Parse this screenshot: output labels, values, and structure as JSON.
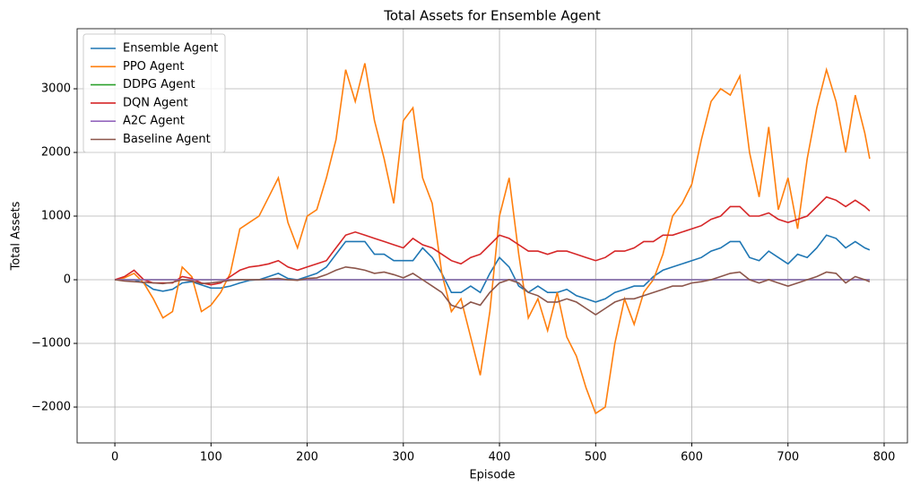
{
  "chart_data": {
    "type": "line",
    "title": "Total Assets for Ensemble Agent",
    "x_label": "Episode",
    "y_label": "Total Assets",
    "x": [
      0,
      10,
      20,
      30,
      40,
      50,
      60,
      70,
      80,
      90,
      100,
      110,
      120,
      130,
      140,
      150,
      160,
      170,
      180,
      190,
      200,
      210,
      220,
      230,
      240,
      250,
      260,
      270,
      280,
      290,
      300,
      310,
      320,
      330,
      340,
      350,
      360,
      370,
      380,
      390,
      400,
      410,
      420,
      430,
      440,
      450,
      460,
      470,
      480,
      490,
      500,
      510,
      520,
      530,
      540,
      550,
      560,
      570,
      580,
      590,
      600,
      610,
      620,
      630,
      640,
      650,
      660,
      670,
      680,
      690,
      700,
      710,
      720,
      730,
      740,
      750,
      760,
      770,
      780,
      785
    ],
    "series": [
      {
        "name": "Ensemble Agent",
        "color": "#1f77b4",
        "values": [
          0,
          0,
          0,
          -50,
          -150,
          -180,
          -150,
          -50,
          -30,
          -80,
          -130,
          -130,
          -100,
          -50,
          -10,
          0,
          50,
          100,
          20,
          0,
          50,
          100,
          200,
          400,
          600,
          600,
          600,
          400,
          400,
          300,
          300,
          300,
          500,
          350,
          100,
          -200,
          -200,
          -100,
          -200,
          100,
          350,
          200,
          -100,
          -200,
          -100,
          -200,
          -200,
          -150,
          -250,
          -300,
          -350,
          -300,
          -200,
          -150,
          -100,
          -100,
          50,
          150,
          200,
          250,
          300,
          350,
          450,
          500,
          600,
          600,
          350,
          300,
          450,
          350,
          250,
          400,
          350,
          500,
          700,
          650,
          500,
          600,
          500,
          470
        ]
      },
      {
        "name": "PPO Agent",
        "color": "#ff7f0e",
        "values": [
          0,
          30,
          100,
          -50,
          -300,
          -600,
          -500,
          200,
          50,
          -500,
          -400,
          -200,
          100,
          800,
          900,
          1000,
          1300,
          1600,
          900,
          500,
          1000,
          1100,
          1600,
          2200,
          3300,
          2800,
          3400,
          2500,
          1900,
          1200,
          2500,
          2700,
          1600,
          1200,
          100,
          -500,
          -300,
          -900,
          -1500,
          -500,
          1000,
          1600,
          400,
          -600,
          -300,
          -800,
          -200,
          -900,
          -1200,
          -1700,
          -2100,
          -2000,
          -1000,
          -300,
          -700,
          -200,
          0,
          400,
          1000,
          1200,
          1500,
          2200,
          2800,
          3000,
          2900,
          3200,
          2000,
          1300,
          2400,
          1100,
          1600,
          800,
          1900,
          2700,
          3300,
          2800,
          2000,
          2900,
          2300,
          1900
        ]
      },
      {
        "name": "DDPG Agent",
        "color": "#2ca02c",
        "values": [
          0,
          0,
          0,
          0,
          0,
          0,
          0,
          0,
          0,
          0,
          0,
          0,
          0,
          0,
          0,
          0,
          0,
          0,
          0,
          0,
          0,
          0,
          0,
          0,
          0,
          0,
          0,
          0,
          0,
          0,
          0,
          0,
          0,
          0,
          0,
          0,
          0,
          0,
          0,
          0,
          0,
          0,
          0,
          0,
          0,
          0,
          0,
          0,
          0,
          0,
          0,
          0,
          0,
          0,
          0,
          0,
          0,
          0,
          0,
          0,
          0,
          0,
          0,
          0,
          0,
          0,
          0,
          0,
          0,
          0,
          0,
          0,
          0,
          0,
          0,
          0,
          0,
          0,
          0,
          0
        ]
      },
      {
        "name": "DQN Agent",
        "color": "#d62728",
        "values": [
          0,
          50,
          150,
          0,
          -50,
          -50,
          -50,
          50,
          20,
          -50,
          -80,
          -50,
          50,
          150,
          200,
          220,
          250,
          300,
          200,
          150,
          200,
          250,
          300,
          500,
          700,
          750,
          700,
          650,
          600,
          550,
          500,
          650,
          550,
          500,
          400,
          300,
          250,
          350,
          400,
          550,
          700,
          650,
          550,
          450,
          450,
          400,
          450,
          450,
          400,
          350,
          300,
          350,
          450,
          450,
          500,
          600,
          600,
          700,
          700,
          750,
          800,
          850,
          950,
          1000,
          1150,
          1150,
          1000,
          1000,
          1050,
          950,
          900,
          950,
          1000,
          1150,
          1300,
          1250,
          1150,
          1250,
          1150,
          1080
        ]
      },
      {
        "name": "A2C Agent",
        "color": "#9467bd",
        "values": [
          0,
          0,
          0,
          0,
          0,
          0,
          0,
          0,
          0,
          0,
          0,
          0,
          0,
          0,
          0,
          0,
          0,
          0,
          0,
          0,
          0,
          0,
          0,
          0,
          0,
          0,
          0,
          0,
          0,
          0,
          0,
          0,
          0,
          0,
          0,
          0,
          0,
          0,
          0,
          0,
          0,
          0,
          0,
          0,
          0,
          0,
          0,
          0,
          0,
          0,
          0,
          0,
          0,
          0,
          0,
          0,
          0,
          0,
          0,
          0,
          0,
          0,
          0,
          0,
          0,
          0,
          0,
          0,
          0,
          0,
          0,
          0,
          0,
          0,
          0,
          0,
          0,
          0,
          0,
          0
        ]
      },
      {
        "name": "Baseline Agent",
        "color": "#8c564b",
        "values": [
          0,
          -20,
          -30,
          -40,
          -50,
          -60,
          -40,
          0,
          -20,
          -60,
          -50,
          -30,
          -10,
          0,
          0,
          0,
          10,
          20,
          0,
          -10,
          20,
          30,
          80,
          150,
          200,
          180,
          150,
          100,
          120,
          80,
          30,
          100,
          0,
          -100,
          -200,
          -400,
          -450,
          -350,
          -400,
          -200,
          -50,
          0,
          -50,
          -200,
          -250,
          -350,
          -350,
          -300,
          -350,
          -450,
          -550,
          -450,
          -350,
          -300,
          -300,
          -250,
          -200,
          -150,
          -100,
          -100,
          -50,
          -30,
          0,
          50,
          100,
          120,
          0,
          -50,
          0,
          -50,
          -100,
          -50,
          0,
          50,
          120,
          100,
          -50,
          50,
          0,
          -30
        ]
      }
    ],
    "xlim": [
      -39.25,
      824.25
    ],
    "xticks": [
      0,
      100,
      200,
      300,
      400,
      500,
      600,
      700,
      800
    ],
    "ylim": [
      -2563,
      3944
    ],
    "yticks": [
      {
        "value": -2000,
        "label": "−2000"
      },
      {
        "value": -1000,
        "label": "−1000"
      },
      0,
      1000,
      2000,
      3000
    ],
    "grid": true,
    "legend": "upper-left"
  }
}
